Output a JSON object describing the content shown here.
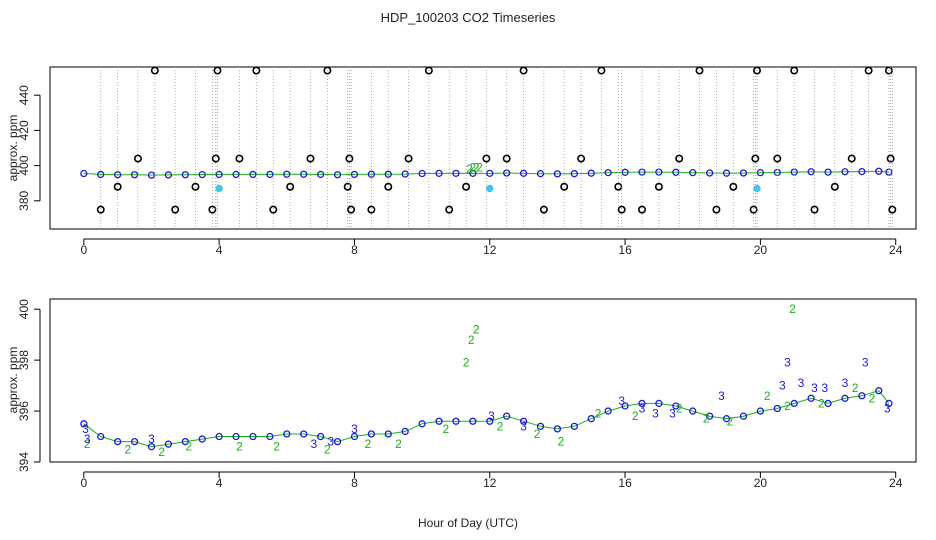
{
  "chart_data": [
    {
      "type": "scatter",
      "title": "HDP_100203  CO2 Timeseries",
      "xlabel": "",
      "ylabel": "approx. ppm",
      "xlim": [
        -1,
        24.6
      ],
      "ylim": [
        364,
        456
      ],
      "xticks": [
        0,
        4,
        8,
        12,
        16,
        20,
        24
      ],
      "yticks": [
        380,
        400,
        420,
        440
      ],
      "series": [
        {
          "name": "baseline (circles, blue)",
          "color": "#1a1ad8",
          "x": [
            0,
            0.5,
            1,
            1.5,
            2,
            2.5,
            3,
            3.5,
            4,
            4.5,
            5,
            5.5,
            6,
            6.5,
            7,
            7.5,
            8,
            8.5,
            9,
            9.5,
            10,
            10.5,
            11,
            11.5,
            12,
            12.5,
            13,
            13.5,
            14,
            14.5,
            15,
            15.5,
            16,
            16.5,
            17,
            17.5,
            18,
            18.5,
            19,
            19.5,
            20,
            20.5,
            21,
            21.5,
            22,
            22.5,
            23,
            23.5,
            23.8
          ],
          "y": [
            395.5,
            395,
            394.8,
            394.8,
            394.6,
            394.7,
            394.8,
            394.9,
            395,
            395,
            395,
            395,
            395.1,
            395.1,
            395,
            394.8,
            395,
            395.1,
            395.1,
            395.2,
            395.5,
            395.6,
            395.6,
            395.6,
            395.6,
            395.8,
            395.6,
            395.4,
            395.3,
            395.4,
            395.7,
            396,
            396.2,
            396.3,
            396.3,
            396.2,
            396,
            395.8,
            395.7,
            395.8,
            396,
            396.1,
            396.3,
            396.5,
            396.3,
            396.5,
            396.6,
            396.8,
            396.3
          ]
        },
        {
          "name": "spike flags (black circles)",
          "color": "#000000",
          "x": [
            0.5,
            1.0,
            1.6,
            2.1,
            2.7,
            3.3,
            3.8,
            3.9,
            3.95,
            4.6,
            5.1,
            5.6,
            6.1,
            6.7,
            7.2,
            7.8,
            7.85,
            7.9,
            8.5,
            9.0,
            9.6,
            10.2,
            10.8,
            11.3,
            11.9,
            12.5,
            13.0,
            13.6,
            14.2,
            14.7,
            15.3,
            15.8,
            15.9,
            16.5,
            17.0,
            17.6,
            18.2,
            18.7,
            19.2,
            19.8,
            19.85,
            19.9,
            20.5,
            21.0,
            21.6,
            22.2,
            22.7,
            23.2,
            23.8,
            23.85,
            23.9
          ],
          "y": [
            375,
            388,
            404,
            454,
            375,
            388,
            375,
            404,
            454,
            404,
            454,
            375,
            388,
            404,
            454,
            388,
            404,
            375,
            375,
            388,
            404,
            454,
            375,
            388,
            404,
            404,
            454,
            375,
            388,
            404,
            454,
            388,
            375,
            375,
            388,
            404,
            454,
            375,
            388,
            375,
            404,
            454,
            404,
            454,
            375,
            388,
            404,
            454,
            454,
            404,
            375
          ]
        },
        {
          "name": "flag 2 (green)",
          "color": "#19b019",
          "x": [
            11.4,
            11.5,
            11.6,
            11.7
          ],
          "y": [
            398,
            399,
            399,
            399
          ]
        },
        {
          "name": "flag cyan",
          "color": "#3ec8e8",
          "x": [
            4.0,
            12.0,
            19.9
          ],
          "y": [
            387,
            387,
            387
          ]
        }
      ]
    },
    {
      "type": "scatter",
      "title": "",
      "xlabel": "Hour of Day (UTC)",
      "ylabel": "approx. ppm",
      "xlim": [
        -1,
        24.6
      ],
      "ylim": [
        394,
        400.4
      ],
      "xticks": [
        0,
        4,
        8,
        12,
        16,
        20,
        24
      ],
      "yticks": [
        394,
        396,
        398,
        400
      ],
      "series": [
        {
          "name": "baseline (circles, blue)",
          "color": "#1a1ad8",
          "x": [
            0,
            0.5,
            1,
            1.5,
            2,
            2.5,
            3,
            3.5,
            4,
            4.5,
            5,
            5.5,
            6,
            6.5,
            7,
            7.5,
            8,
            8.5,
            9,
            9.5,
            10,
            10.5,
            11,
            11.5,
            12,
            12.5,
            13,
            13.5,
            14,
            14.5,
            15,
            15.5,
            16,
            16.5,
            17,
            17.5,
            18,
            18.5,
            19,
            19.5,
            20,
            20.5,
            21,
            21.5,
            22,
            22.5,
            23,
            23.5,
            23.8
          ],
          "y": [
            395.5,
            395,
            394.8,
            394.8,
            394.6,
            394.7,
            394.8,
            394.9,
            395,
            395,
            395,
            395,
            395.1,
            395.1,
            395,
            394.8,
            395,
            395.1,
            395.1,
            395.2,
            395.5,
            395.6,
            395.6,
            395.6,
            395.6,
            395.8,
            395.6,
            395.4,
            395.3,
            395.4,
            395.7,
            396,
            396.2,
            396.3,
            396.3,
            396.2,
            396,
            395.8,
            395.7,
            395.8,
            396,
            396.1,
            396.3,
            396.5,
            396.3,
            396.5,
            396.6,
            396.8,
            396.3
          ]
        },
        {
          "name": "flag 2 (green)",
          "color": "#19b019",
          "x": [
            0.1,
            1.3,
            2.3,
            3.1,
            4.6,
            5.7,
            7.2,
            8.4,
            9.3,
            10.7,
            11.3,
            11.45,
            11.6,
            12.3,
            13.4,
            14.1,
            15.2,
            16.3,
            17.6,
            18.4,
            19.1,
            20.2,
            20.8,
            20.95,
            21.8,
            22.8,
            23.3
          ],
          "y": [
            394.7,
            394.5,
            394.4,
            394.6,
            394.6,
            394.6,
            394.5,
            394.7,
            394.7,
            395.3,
            397.9,
            398.8,
            399.2,
            395.4,
            395.1,
            394.8,
            395.9,
            395.8,
            396.1,
            395.7,
            395.6,
            396.6,
            396.2,
            400,
            396.3,
            396.9,
            396.5
          ]
        },
        {
          "name": "flag 3 (blue)",
          "color": "#1a1ad8",
          "x": [
            0.05,
            0.1,
            2.0,
            6.8,
            7.3,
            8.0,
            12.05,
            13.0,
            15.9,
            16.5,
            16.9,
            17.4,
            18.85,
            20.65,
            20.8,
            21.2,
            21.6,
            21.9,
            22.5,
            23.1,
            23.75
          ],
          "y": [
            395.3,
            394.9,
            394.9,
            394.7,
            394.8,
            395.3,
            395.8,
            395.4,
            396.4,
            396.1,
            395.9,
            395.9,
            396.6,
            397.0,
            397.9,
            397.1,
            396.9,
            396.9,
            397.1,
            397.9,
            396.1
          ]
        }
      ]
    }
  ]
}
